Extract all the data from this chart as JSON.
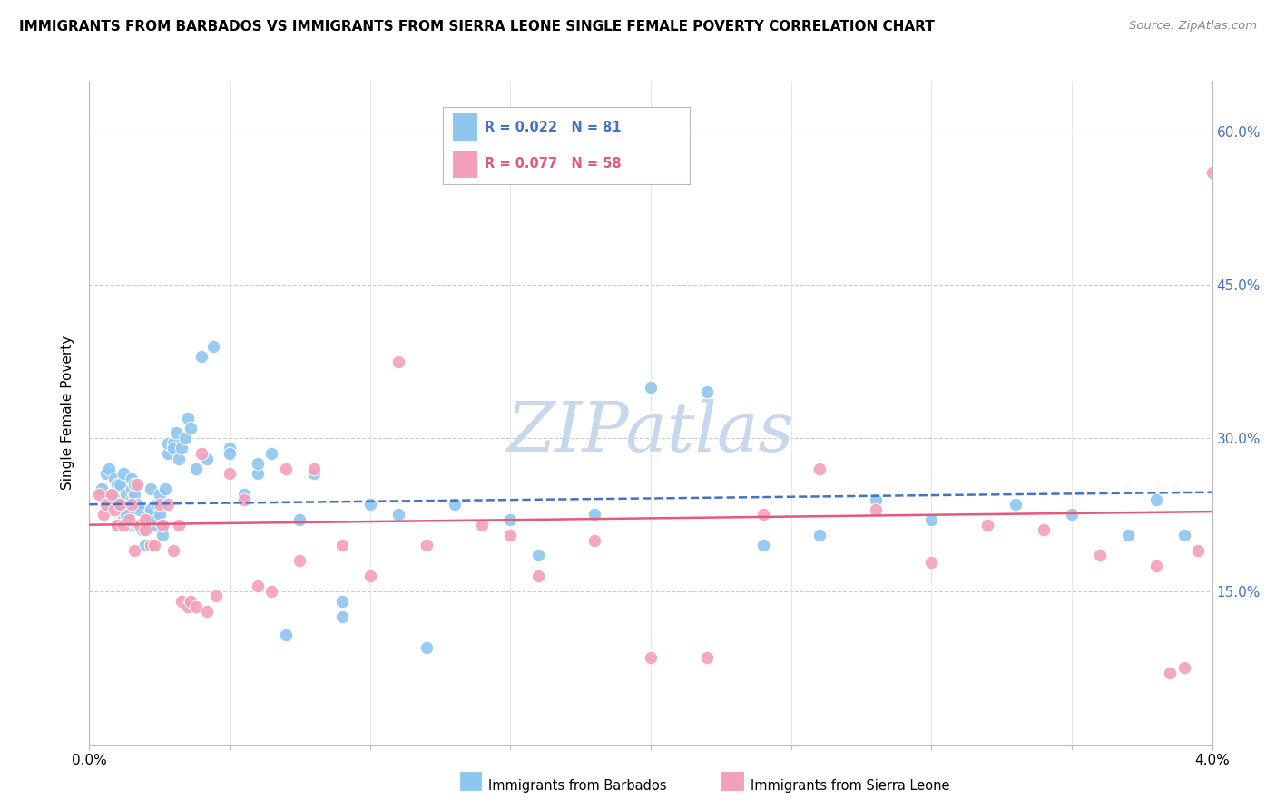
{
  "title": "IMMIGRANTS FROM BARBADOS VS IMMIGRANTS FROM SIERRA LEONE SINGLE FEMALE POVERTY CORRELATION CHART",
  "source": "Source: ZipAtlas.com",
  "ylabel": "Single Female Poverty",
  "x_min": 0.0,
  "x_max": 0.04,
  "y_min": 0.0,
  "y_max": 0.65,
  "y_ticks": [
    0.15,
    0.3,
    0.45,
    0.6
  ],
  "y_tick_labels": [
    "15.0%",
    "30.0%",
    "45.0%",
    "60.0%"
  ],
  "x_ticks": [
    0.0,
    0.005,
    0.01,
    0.015,
    0.02,
    0.025,
    0.03,
    0.035,
    0.04
  ],
  "x_tick_labels": [
    "0.0%",
    "",
    "",
    "",
    "",
    "",
    "",
    "",
    "4.0%"
  ],
  "legend_barbados": "Immigrants from Barbados",
  "legend_sierra": "Immigrants from Sierra Leone",
  "R_barbados": 0.022,
  "N_barbados": 81,
  "R_sierra": 0.077,
  "N_sierra": 58,
  "color_barbados": "#8EC6F0",
  "color_sierra": "#F4A0BA",
  "trendline_barbados_color": "#4472C4",
  "trendline_sierra_color": "#E8567A",
  "background_color": "#FFFFFF",
  "watermark_color": "#C8D8EC",
  "barbados_x": [
    0.00045,
    0.0006,
    0.0007,
    0.0008,
    0.0009,
    0.001,
    0.001,
    0.0011,
    0.0011,
    0.0012,
    0.0012,
    0.0013,
    0.0013,
    0.0014,
    0.0014,
    0.0015,
    0.0015,
    0.0015,
    0.0016,
    0.0016,
    0.0017,
    0.0017,
    0.0018,
    0.0018,
    0.0019,
    0.002,
    0.002,
    0.0021,
    0.0022,
    0.0022,
    0.0023,
    0.0024,
    0.0024,
    0.0025,
    0.0025,
    0.0026,
    0.0026,
    0.0027,
    0.0028,
    0.0028,
    0.003,
    0.003,
    0.0031,
    0.0032,
    0.0033,
    0.0034,
    0.0035,
    0.0036,
    0.0038,
    0.004,
    0.0042,
    0.0044,
    0.005,
    0.005,
    0.0055,
    0.006,
    0.006,
    0.0065,
    0.007,
    0.0075,
    0.008,
    0.009,
    0.009,
    0.01,
    0.011,
    0.012,
    0.013,
    0.015,
    0.016,
    0.018,
    0.02,
    0.022,
    0.024,
    0.026,
    0.028,
    0.03,
    0.033,
    0.035,
    0.037,
    0.038,
    0.039
  ],
  "barbados_y": [
    0.25,
    0.265,
    0.27,
    0.245,
    0.26,
    0.255,
    0.24,
    0.255,
    0.235,
    0.265,
    0.22,
    0.225,
    0.245,
    0.215,
    0.225,
    0.25,
    0.24,
    0.26,
    0.245,
    0.255,
    0.215,
    0.235,
    0.215,
    0.23,
    0.21,
    0.195,
    0.215,
    0.225,
    0.23,
    0.25,
    0.215,
    0.22,
    0.235,
    0.225,
    0.245,
    0.205,
    0.215,
    0.25,
    0.285,
    0.295,
    0.295,
    0.29,
    0.305,
    0.28,
    0.29,
    0.3,
    0.32,
    0.31,
    0.27,
    0.38,
    0.28,
    0.39,
    0.29,
    0.285,
    0.245,
    0.265,
    0.275,
    0.285,
    0.107,
    0.22,
    0.265,
    0.125,
    0.14,
    0.235,
    0.225,
    0.095,
    0.235,
    0.22,
    0.185,
    0.225,
    0.35,
    0.345,
    0.195,
    0.205,
    0.24,
    0.22,
    0.235,
    0.225,
    0.205,
    0.24,
    0.205
  ],
  "sierra_x": [
    0.00035,
    0.0005,
    0.0006,
    0.0008,
    0.0009,
    0.001,
    0.0011,
    0.0012,
    0.0014,
    0.0015,
    0.0016,
    0.0017,
    0.0018,
    0.002,
    0.002,
    0.0022,
    0.0023,
    0.0025,
    0.0026,
    0.0028,
    0.003,
    0.0032,
    0.0033,
    0.0035,
    0.0036,
    0.0038,
    0.004,
    0.0042,
    0.0045,
    0.005,
    0.0055,
    0.006,
    0.0065,
    0.007,
    0.0075,
    0.008,
    0.009,
    0.01,
    0.011,
    0.012,
    0.014,
    0.015,
    0.016,
    0.018,
    0.02,
    0.022,
    0.024,
    0.026,
    0.028,
    0.03,
    0.032,
    0.034,
    0.036,
    0.038,
    0.0385,
    0.039,
    0.0395,
    0.04
  ],
  "sierra_y": [
    0.245,
    0.225,
    0.235,
    0.245,
    0.23,
    0.215,
    0.235,
    0.215,
    0.22,
    0.235,
    0.19,
    0.255,
    0.215,
    0.22,
    0.21,
    0.195,
    0.195,
    0.235,
    0.215,
    0.235,
    0.19,
    0.215,
    0.14,
    0.135,
    0.14,
    0.135,
    0.285,
    0.13,
    0.145,
    0.265,
    0.24,
    0.155,
    0.15,
    0.27,
    0.18,
    0.27,
    0.195,
    0.165,
    0.375,
    0.195,
    0.215,
    0.205,
    0.165,
    0.2,
    0.085,
    0.085,
    0.225,
    0.27,
    0.23,
    0.178,
    0.215,
    0.21,
    0.185,
    0.175,
    0.07,
    0.075,
    0.19,
    0.56
  ]
}
